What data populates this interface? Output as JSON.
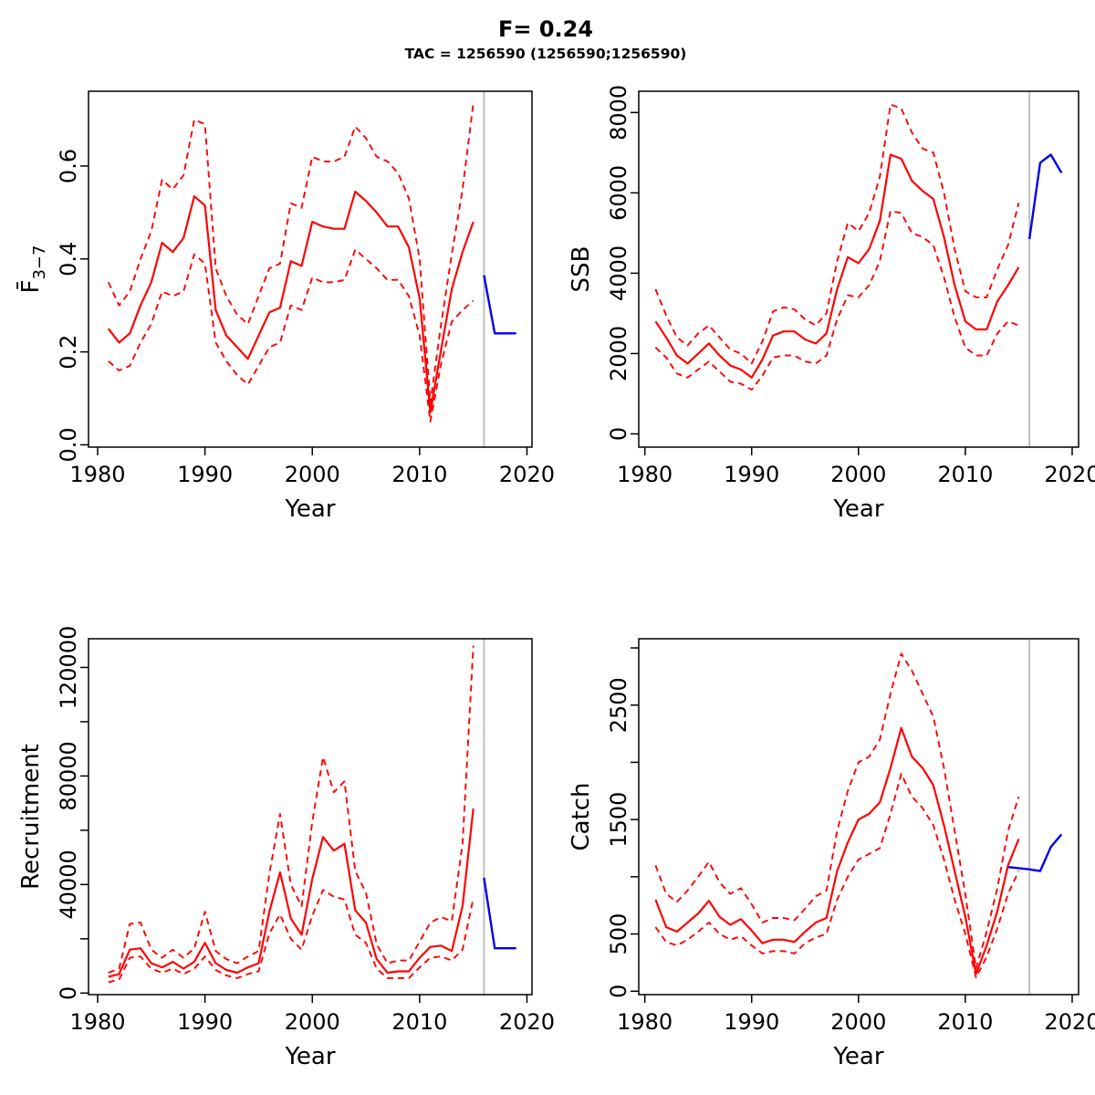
{
  "title": "F= 0.24",
  "subtitle": "TAC = 1256590 (1256590;1256590)",
  "colors": {
    "median": "#FF0000",
    "confidence_bounds": "#FF0000",
    "forecast": "#0000EE",
    "divider": "#BEBEBE",
    "axis": "#000000",
    "background": "#FFFFFF"
  },
  "chart_data": [
    {
      "id": "f",
      "type": "line",
      "position": "top-left",
      "xlabel": "Year",
      "ylabel": "F̄",
      "ylabel_sub": "3−7",
      "xlim": [
        1979.15,
        2020.47
      ],
      "ylim": [
        -0.005,
        0.761
      ],
      "xticks": {
        "values": [
          1980,
          1990,
          2000,
          2010,
          2020
        ],
        "labels": [
          "1980",
          "1990",
          "2000",
          "2010",
          "2020"
        ]
      },
      "yticks": {
        "values": [
          0,
          0.2,
          0.4,
          0.6
        ],
        "labels": [
          "0.0",
          "0.2",
          "0.4",
          "0.6"
        ]
      },
      "vline_x": 2016,
      "x": [
        1981,
        1982,
        1983,
        1984,
        1985,
        1986,
        1987,
        1988,
        1989,
        1990,
        1991,
        1992,
        1993,
        1994,
        1995,
        1996,
        1997,
        1998,
        1999,
        2000,
        2001,
        2002,
        2003,
        2004,
        2005,
        2006,
        2007,
        2008,
        2009,
        2010,
        2011,
        2012,
        2013,
        2014,
        2015
      ],
      "median": [
        0.25,
        0.22,
        0.24,
        0.3,
        0.35,
        0.435,
        0.415,
        0.445,
        0.535,
        0.515,
        0.29,
        0.235,
        0.21,
        0.185,
        0.235,
        0.285,
        0.295,
        0.395,
        0.385,
        0.48,
        0.47,
        0.465,
        0.465,
        0.545,
        0.525,
        0.5,
        0.47,
        0.47,
        0.425,
        0.315,
        0.07,
        0.205,
        0.335,
        0.415,
        0.48
      ],
      "upper": [
        0.35,
        0.3,
        0.33,
        0.4,
        0.46,
        0.57,
        0.55,
        0.58,
        0.7,
        0.69,
        0.38,
        0.32,
        0.28,
        0.26,
        0.32,
        0.38,
        0.39,
        0.52,
        0.51,
        0.62,
        0.61,
        0.61,
        0.62,
        0.685,
        0.66,
        0.62,
        0.61,
        0.585,
        0.53,
        0.4,
        0.09,
        0.26,
        0.41,
        0.55,
        0.735
      ],
      "lower": [
        0.18,
        0.16,
        0.17,
        0.22,
        0.26,
        0.33,
        0.32,
        0.33,
        0.41,
        0.39,
        0.22,
        0.18,
        0.15,
        0.13,
        0.17,
        0.21,
        0.22,
        0.3,
        0.29,
        0.36,
        0.35,
        0.35,
        0.355,
        0.42,
        0.4,
        0.38,
        0.355,
        0.355,
        0.32,
        0.235,
        0.05,
        0.175,
        0.265,
        0.29,
        0.31
      ],
      "forecast_x": [
        2016,
        2017,
        2018,
        2019
      ],
      "forecast": [
        0.365,
        0.24,
        0.24,
        0.24
      ]
    },
    {
      "id": "ssb",
      "type": "line",
      "position": "top-right",
      "xlabel": "Year",
      "ylabel": "SSB",
      "ylabel_sub": "",
      "xlim": [
        1979.43,
        2020.6
      ],
      "ylim": [
        -330,
        8530
      ],
      "xticks": {
        "values": [
          1980,
          1990,
          2000,
          2010,
          2020
        ],
        "labels": [
          "1980",
          "1990",
          "2000",
          "2010",
          "2020"
        ]
      },
      "yticks": {
        "values": [
          0,
          2000,
          4000,
          6000,
          8000
        ],
        "labels": [
          "0",
          "2000",
          "4000",
          "6000",
          "8000"
        ]
      },
      "vline_x": 2016,
      "x": [
        1981,
        1982,
        1983,
        1984,
        1985,
        1986,
        1987,
        1988,
        1989,
        1990,
        1991,
        1992,
        1993,
        1994,
        1995,
        1996,
        1997,
        1998,
        1999,
        2000,
        2001,
        2002,
        2003,
        2004,
        2005,
        2006,
        2007,
        2008,
        2009,
        2010,
        2011,
        2012,
        2013,
        2014,
        2015
      ],
      "median": [
        2800,
        2400,
        1950,
        1750,
        2000,
        2250,
        1950,
        1700,
        1600,
        1400,
        1850,
        2450,
        2550,
        2550,
        2350,
        2250,
        2500,
        3600,
        4400,
        4250,
        4600,
        5300,
        6950,
        6850,
        6300,
        6050,
        5850,
        4900,
        3700,
        2800,
        2600,
        2600,
        3300,
        3700,
        4150
      ],
      "upper": [
        3600,
        2950,
        2400,
        2200,
        2500,
        2700,
        2400,
        2100,
        2000,
        1750,
        2300,
        3050,
        3150,
        3100,
        2850,
        2700,
        3000,
        4300,
        5250,
        5050,
        5500,
        6400,
        8200,
        8100,
        7500,
        7100,
        7000,
        6000,
        4600,
        3550,
        3400,
        3400,
        4100,
        4700,
        5750
      ],
      "lower": [
        2150,
        1900,
        1500,
        1400,
        1600,
        1800,
        1550,
        1300,
        1250,
        1100,
        1450,
        1900,
        1950,
        1950,
        1800,
        1750,
        1950,
        2850,
        3450,
        3400,
        3700,
        4300,
        5550,
        5500,
        5000,
        4900,
        4700,
        3900,
        2900,
        2150,
        1950,
        1950,
        2500,
        2800,
        2700
      ],
      "forecast_x": [
        2016,
        2017,
        2018,
        2019
      ],
      "forecast": [
        4850,
        6750,
        6950,
        6500
      ]
    },
    {
      "id": "recruitment",
      "type": "line",
      "position": "bottom-left",
      "xlabel": "Year",
      "ylabel": "Recruitment",
      "ylabel_sub": "",
      "xlim": [
        1979.15,
        2020.47
      ],
      "ylim": [
        -570,
        130570
      ],
      "xticks": {
        "values": [
          1980,
          1990,
          2000,
          2010,
          2020
        ],
        "labels": [
          "1980",
          "1990",
          "2000",
          "2010",
          "2020"
        ]
      },
      "yticks": {
        "values": [
          0,
          20000,
          40000,
          60000,
          80000,
          100000,
          120000
        ],
        "labels": [
          "0",
          "",
          "40000",
          "",
          "80000",
          "",
          "120000"
        ]
      },
      "vline_x": 2016,
      "x": [
        1981,
        1982,
        1983,
        1984,
        1985,
        1986,
        1987,
        1988,
        1989,
        1990,
        1991,
        1992,
        1993,
        1994,
        1995,
        1996,
        1997,
        1998,
        1999,
        2000,
        2001,
        2002,
        2003,
        2004,
        2005,
        2006,
        2007,
        2008,
        2009,
        2010,
        2011,
        2012,
        2013,
        2014,
        2015
      ],
      "median": [
        6000,
        7000,
        16000,
        16500,
        11000,
        9500,
        11500,
        9000,
        11500,
        18500,
        11000,
        8500,
        7500,
        9500,
        11000,
        30000,
        44500,
        27500,
        21500,
        42000,
        57500,
        52500,
        55000,
        30500,
        26000,
        12500,
        7500,
        8000,
        8000,
        13000,
        17000,
        17500,
        15500,
        32000,
        68000
      ],
      "upper": [
        7500,
        9000,
        25500,
        26000,
        16000,
        13000,
        16000,
        13000,
        16500,
        30000,
        15500,
        12500,
        11000,
        13500,
        15500,
        44000,
        66000,
        40000,
        32000,
        63000,
        87000,
        74000,
        78000,
        45000,
        37000,
        18000,
        11000,
        12000,
        12000,
        19000,
        26000,
        28000,
        26500,
        55000,
        128000
      ],
      "lower": [
        4000,
        5000,
        13000,
        13500,
        9000,
        7500,
        9000,
        7000,
        9000,
        13500,
        8500,
        6500,
        5500,
        7000,
        8000,
        22000,
        29000,
        20000,
        16000,
        28500,
        38000,
        35500,
        34500,
        21500,
        18500,
        9000,
        5500,
        5500,
        5500,
        9500,
        13000,
        13500,
        12000,
        16000,
        35000
      ],
      "forecast_x": [
        2016,
        2017,
        2018,
        2019
      ],
      "forecast": [
        42500,
        16500,
        16500,
        16500
      ]
    },
    {
      "id": "catch",
      "type": "line",
      "position": "bottom-right",
      "xlabel": "Year",
      "ylabel": "Catch",
      "ylabel_sub": "",
      "xlim": [
        1979.43,
        2020.6
      ],
      "ylim": [
        -30,
        3080
      ],
      "xticks": {
        "values": [
          1980,
          1990,
          2000,
          2010,
          2020
        ],
        "labels": [
          "1980",
          "1990",
          "2000",
          "2010",
          "2020"
        ]
      },
      "yticks": {
        "values": [
          0,
          500,
          1000,
          1500,
          2000,
          2500,
          3000
        ],
        "labels": [
          "0",
          "500",
          "",
          "1500",
          "",
          "2500",
          ""
        ]
      },
      "vline_x": 2016,
      "x": [
        1981,
        1982,
        1983,
        1984,
        1985,
        1986,
        1987,
        1988,
        1989,
        1990,
        1991,
        1992,
        1993,
        1994,
        1995,
        1996,
        1997,
        1998,
        1999,
        2000,
        2001,
        2002,
        2003,
        2004,
        2005,
        2006,
        2007,
        2008,
        2009,
        2010,
        2011,
        2012,
        2013,
        2014,
        2015
      ],
      "median": [
        800,
        560,
        520,
        600,
        680,
        790,
        650,
        580,
        630,
        530,
        420,
        450,
        450,
        430,
        520,
        600,
        640,
        1050,
        1300,
        1500,
        1550,
        1650,
        1950,
        2300,
        2050,
        1950,
        1800,
        1450,
        1050,
        650,
        150,
        400,
        700,
        1100,
        1330
      ],
      "upper": [
        1100,
        850,
        780,
        880,
        1000,
        1130,
        950,
        850,
        900,
        760,
        600,
        640,
        640,
        620,
        720,
        830,
        880,
        1400,
        1750,
        2000,
        2050,
        2200,
        2600,
        2950,
        2800,
        2600,
        2400,
        1950,
        1400,
        850,
        200,
        520,
        900,
        1400,
        1700
      ],
      "lower": [
        560,
        430,
        400,
        450,
        520,
        600,
        500,
        450,
        480,
        400,
        330,
        350,
        350,
        330,
        420,
        470,
        500,
        800,
        1000,
        1150,
        1200,
        1250,
        1550,
        1900,
        1700,
        1600,
        1450,
        1150,
        800,
        500,
        120,
        300,
        550,
        850,
        1050
      ],
      "forecast_x": [
        2014,
        2015,
        2016,
        2017,
        2018,
        2019
      ],
      "forecast": [
        1085,
        1075,
        1065,
        1050,
        1260,
        1370
      ]
    }
  ]
}
